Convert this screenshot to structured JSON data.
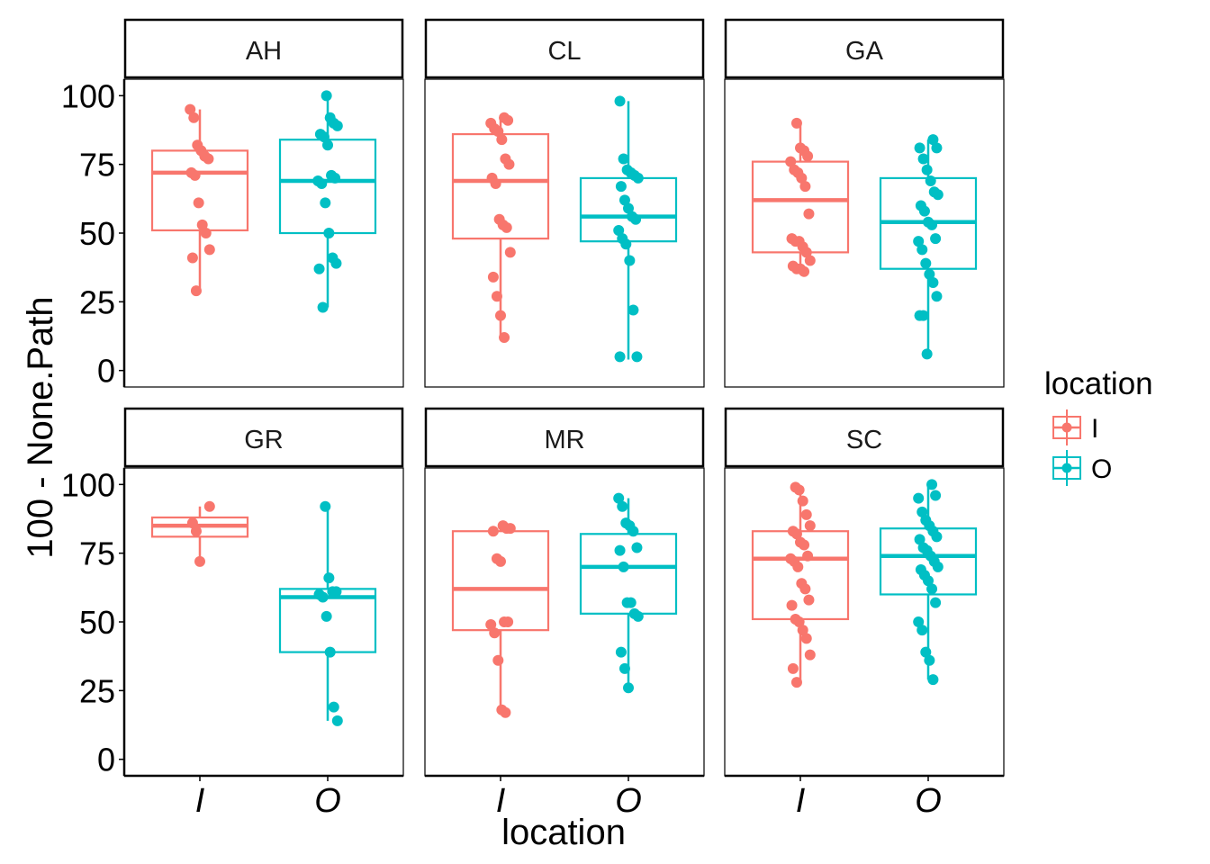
{
  "chart_data": {
    "type": "boxplot",
    "layout": "faceted 2x3",
    "xlabel": "location",
    "ylabel": "100 - None.Path",
    "categories": [
      "I",
      "O"
    ],
    "yticks": [
      0,
      25,
      50,
      75,
      100
    ],
    "ylim": [
      0,
      100
    ],
    "legend": {
      "title": "location",
      "placement": "right",
      "entries": [
        {
          "label": "I",
          "color": "#F8766D"
        },
        {
          "label": "O",
          "color": "#00BFC4"
        }
      ]
    },
    "facets": [
      {
        "name": "AH",
        "boxes": [
          {
            "category": "I",
            "lower": 28,
            "q1": 51,
            "median": 72,
            "q3": 80,
            "upper": 95,
            "points": [
              95,
              92,
              82,
              80,
              78,
              77,
              72,
              71,
              61,
              53,
              50,
              44,
              41,
              29
            ]
          },
          {
            "category": "O",
            "lower": 23,
            "q1": 50,
            "median": 69,
            "q3": 84,
            "upper": 100,
            "points": [
              100,
              92,
              90,
              89,
              86,
              85,
              82,
              71,
              70,
              69,
              68,
              61,
              50,
              41,
              39,
              37,
              23
            ]
          }
        ]
      },
      {
        "name": "CL",
        "boxes": [
          {
            "category": "I",
            "lower": 12,
            "q1": 48,
            "median": 69,
            "q3": 86,
            "upper": 92,
            "points": [
              92,
              91,
              90,
              88,
              87,
              84,
              77,
              75,
              70,
              68,
              55,
              53,
              52,
              43,
              34,
              27,
              20,
              12
            ]
          },
          {
            "category": "O",
            "lower": 4,
            "q1": 47,
            "median": 56,
            "q3": 70,
            "upper": 98,
            "points": [
              98,
              77,
              73,
              72,
              71,
              70,
              67,
              62,
              59,
              56,
              55,
              51,
              48,
              46,
              40,
              22,
              5,
              5
            ]
          }
        ]
      },
      {
        "name": "GA",
        "boxes": [
          {
            "category": "I",
            "lower": 36,
            "q1": 43,
            "median": 62,
            "q3": 76,
            "upper": 90,
            "points": [
              90,
              81,
              80,
              78,
              76,
              73,
              72,
              70,
              67,
              57,
              48,
              47,
              47,
              45,
              43,
              40,
              38,
              37,
              37,
              36
            ]
          },
          {
            "category": "O",
            "lower": 6,
            "q1": 37,
            "median": 54,
            "q3": 70,
            "upper": 84,
            "points": [
              84,
              81,
              81,
              77,
              73,
              69,
              65,
              64,
              60,
              58,
              54,
              53,
              48,
              47,
              44,
              39,
              35,
              32,
              27,
              20,
              20,
              6
            ]
          }
        ]
      },
      {
        "name": "GR",
        "boxes": [
          {
            "category": "I",
            "lower": 72,
            "q1": 81,
            "median": 85,
            "q3": 88,
            "upper": 92,
            "points": [
              92,
              86,
              83,
              72
            ]
          },
          {
            "category": "O",
            "lower": 14,
            "q1": 39,
            "median": 59,
            "q3": 62,
            "upper": 92,
            "points": [
              92,
              66,
              61,
              61,
              60,
              59,
              52,
              39,
              19,
              14
            ]
          }
        ]
      },
      {
        "name": "MR",
        "boxes": [
          {
            "category": "I",
            "lower": 17,
            "q1": 47,
            "median": 62,
            "q3": 83,
            "upper": 85,
            "points": [
              85,
              84,
              84,
              83,
              73,
              72,
              50,
              50,
              49,
              46,
              36,
              18,
              17
            ]
          },
          {
            "category": "O",
            "lower": 26,
            "q1": 53,
            "median": 70,
            "q3": 82,
            "upper": 95,
            "points": [
              95,
              92,
              86,
              85,
              83,
              77,
              76,
              70,
              57,
              57,
              53,
              52,
              39,
              33,
              26
            ]
          }
        ]
      },
      {
        "name": "SC",
        "boxes": [
          {
            "category": "I",
            "lower": 27,
            "q1": 51,
            "median": 73,
            "q3": 83,
            "upper": 99,
            "points": [
              99,
              98,
              94,
              89,
              85,
              83,
              82,
              79,
              78,
              74,
              73,
              72,
              70,
              64,
              62,
              58,
              56,
              51,
              50,
              47,
              44,
              38,
              33,
              28
            ]
          },
          {
            "category": "O",
            "lower": 29,
            "q1": 60,
            "median": 74,
            "q3": 84,
            "upper": 100,
            "points": [
              100,
              96,
              95,
              90,
              87,
              85,
              83,
              81,
              80,
              77,
              76,
              74,
              72,
              70,
              69,
              67,
              65,
              62,
              57,
              50,
              47,
              39,
              36,
              29
            ]
          }
        ]
      }
    ]
  }
}
